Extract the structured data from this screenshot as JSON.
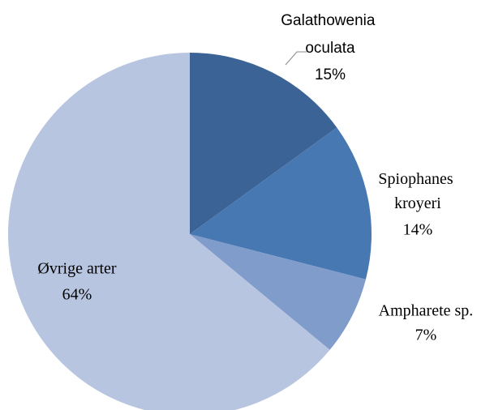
{
  "chart_data": {
    "type": "pie",
    "categories": [
      "Galathowenia oculata",
      "Spiophanes kroyeri",
      "Ampharete sp.",
      "Øvrige arter"
    ],
    "values": [
      15,
      14,
      7,
      64
    ],
    "value_labels": [
      "15%",
      "14%",
      "7%",
      "64%"
    ],
    "colors": [
      "#3c6396",
      "#4878b1",
      "#7f9ccb",
      "#b7c5e0"
    ]
  }
}
